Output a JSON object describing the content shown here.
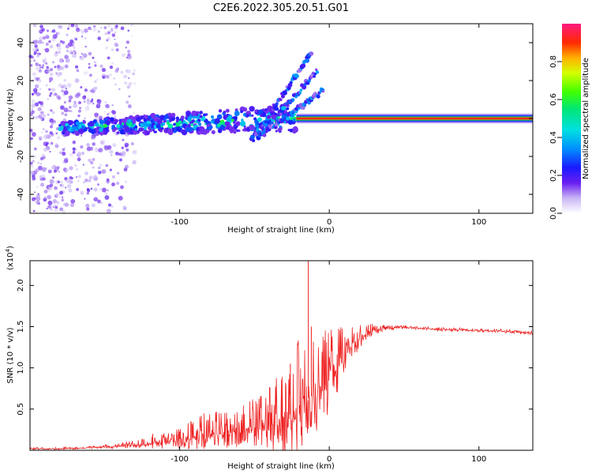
{
  "title": "C2E6.2022.305.20.51.G01",
  "chart_data": [
    {
      "type": "heatmap",
      "xlabel": "Height of straight line (km)",
      "ylabel": "Frequency (Hz)",
      "xlim": [
        -200,
        136
      ],
      "ylim": [
        -50,
        50
      ],
      "x_ticks": [
        -100,
        0,
        100
      ],
      "y_ticks": [
        -40,
        -20,
        0,
        20,
        40
      ],
      "colorbar": {
        "label": "Normalized spectral amplitude",
        "range": [
          0,
          1
        ],
        "ticks": [
          0.0,
          0.2,
          0.4,
          0.6,
          0.8
        ]
      },
      "features": [
        {
          "x_range": [
            -200,
            -130
          ],
          "freq_range": [
            -50,
            50
          ],
          "amplitude": 0.12,
          "kind": "scattered noise"
        },
        {
          "x_range": [
            -180,
            -22
          ],
          "freq_center": -5,
          "freq_center_end": 0,
          "amplitude": 0.35,
          "kind": "drifting trace"
        },
        {
          "x_range": [
            -52,
            -12
          ],
          "freq_range": [
            -12,
            35
          ],
          "amplitude": 0.2,
          "kind": "diagonal branches"
        },
        {
          "x_range": [
            -22,
            136
          ],
          "freq_center": 0,
          "amplitude": 0.95,
          "kind": "stable carrier"
        }
      ]
    },
    {
      "type": "line",
      "xlabel": "Height of straight line (km)",
      "ylabel": "SNR (10 * v/v)",
      "y_multiplier": "(x10",
      "y_multiplier_exp": "4",
      "y_multiplier_close": ")",
      "xlim": [
        -200,
        136
      ],
      "ylim": [
        0,
        2.3
      ],
      "x_ticks": [
        -100,
        0,
        100
      ],
      "y_ticks": [
        0.5,
        1.0,
        1.5,
        2.0
      ],
      "color": "#ee2222",
      "envelope": {
        "x": [
          -200,
          -180,
          -160,
          -140,
          -120,
          -100,
          -90,
          -80,
          -70,
          -60,
          -50,
          -40,
          -30,
          -25,
          -20,
          -15,
          -10,
          -5,
          0,
          5,
          10,
          15,
          20,
          25,
          30,
          40,
          50,
          60,
          70,
          80,
          90,
          100,
          110,
          120,
          136
        ],
        "y": [
          0.02,
          0.02,
          0.03,
          0.05,
          0.08,
          0.12,
          0.16,
          0.2,
          0.22,
          0.24,
          0.28,
          0.32,
          0.38,
          0.45,
          0.55,
          0.62,
          0.68,
          0.75,
          0.85,
          0.98,
          1.12,
          1.25,
          1.35,
          1.42,
          1.46,
          1.48,
          1.49,
          1.48,
          1.47,
          1.46,
          1.46,
          1.45,
          1.45,
          1.44,
          1.42
        ]
      },
      "noise": {
        "x": [
          -200,
          -150,
          -125,
          -100,
          -80,
          -60,
          -45,
          -35,
          -25,
          -15,
          -5,
          5,
          15,
          25,
          35,
          50,
          136
        ],
        "amp": [
          0.01,
          0.02,
          0.05,
          0.12,
          0.22,
          0.22,
          0.3,
          0.45,
          0.6,
          0.65,
          0.55,
          0.4,
          0.2,
          0.08,
          0.04,
          0.02,
          0.02
        ]
      },
      "spikes": [
        {
          "x": -118,
          "y": 0.2
        },
        {
          "x": -26,
          "y": 1.05
        },
        {
          "x": -14,
          "y": 2.3
        },
        {
          "x": -12,
          "y": 1.5
        }
      ]
    }
  ]
}
